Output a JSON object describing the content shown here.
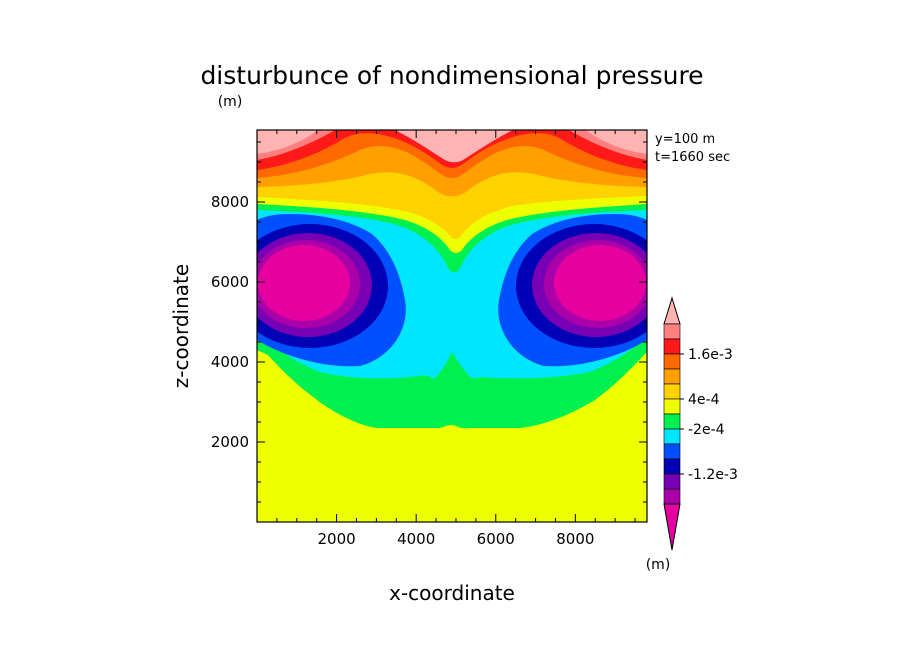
{
  "chart_data": {
    "type": "heatmap",
    "title": "disturbunce of nondimensional pressure",
    "xlabel": "x-coordinate",
    "ylabel": "z-coordinate",
    "y_unit": "(m)",
    "x_unit": "(m)",
    "annotations": [
      "y=100 m",
      "t=1660 sec"
    ],
    "xlim": [
      0,
      9800
    ],
    "ylim": [
      0,
      9800
    ],
    "x_ticks": [
      2000,
      4000,
      6000,
      8000
    ],
    "y_ticks": [
      2000,
      4000,
      6000,
      8000
    ],
    "colorbar": {
      "levels": [
        {
          "color": "#ffb4b4"
        },
        {
          "color": "#ff8080"
        },
        {
          "color": "#ff1a1a"
        },
        {
          "color": "#ff6a00"
        },
        {
          "color": "#ffa000"
        },
        {
          "color": "#ffd200"
        },
        {
          "color": "#eeff00"
        },
        {
          "color": "#00f050"
        },
        {
          "color": "#00e6ff"
        },
        {
          "color": "#0050ff"
        },
        {
          "color": "#0000b4"
        },
        {
          "color": "#7800b4"
        },
        {
          "color": "#aa00aa"
        },
        {
          "color": "#e600a0"
        }
      ],
      "labels": [
        {
          "text": "1.6e-3",
          "at_level_boundary": 3
        },
        {
          "text": "4e-4",
          "at_level_boundary": 6
        },
        {
          "text": "-2e-4",
          "at_level_boundary": 8
        },
        {
          "text": "-1.2e-3",
          "at_level_boundary": 11
        }
      ]
    },
    "field_bands": [
      {
        "color": "#eeff00",
        "note": "background"
      },
      {
        "color": "#00f050",
        "z_bottom": 2500,
        "z_top": 4300
      },
      {
        "color": "#00e6ff",
        "z_bottom": 3600,
        "z_top": 7000
      },
      {
        "color": "#ffd200",
        "z_bottom": 7200,
        "z_top": 7600
      },
      {
        "color": "#ffa000",
        "z_bottom": 7600,
        "z_top": 8100
      },
      {
        "color": "#ff6a00",
        "z_bottom": 8100,
        "z_top": 8600
      },
      {
        "color": "#ff1a1a",
        "z_bottom": 8600,
        "z_top": 9300
      },
      {
        "color": "#ffb4b4",
        "z_bottom": 9300,
        "z_top": 9800
      }
    ],
    "vortices": [
      {
        "x_center": 1800,
        "z_center": 5800
      },
      {
        "x_center": 8200,
        "z_center": 5800
      }
    ]
  }
}
